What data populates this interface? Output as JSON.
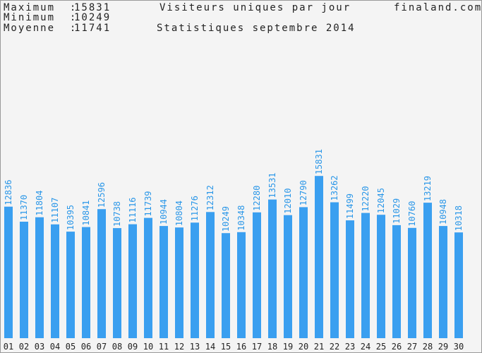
{
  "header": {
    "max_label": "Maximum  :",
    "max_value": "15831",
    "min_label": "Minimum  :",
    "min_value": "10249",
    "avg_label": "Moyenne  :",
    "avg_value": "11741",
    "title": "Visiteurs uniques par jour",
    "subtitle": "Statistiques septembre 2014",
    "site": "finaland.com"
  },
  "colors": {
    "bar": "#3a9ff0",
    "value_label": "#2b97e8",
    "background": "#f4f4f4"
  },
  "chart_data": {
    "type": "bar",
    "title": "Visiteurs uniques par jour",
    "subtitle": "Statistiques septembre 2014",
    "categories": [
      "01",
      "02",
      "03",
      "04",
      "05",
      "06",
      "07",
      "08",
      "09",
      "10",
      "11",
      "12",
      "13",
      "14",
      "15",
      "16",
      "17",
      "18",
      "19",
      "20",
      "21",
      "22",
      "23",
      "24",
      "25",
      "26",
      "27",
      "28",
      "29",
      "30"
    ],
    "values": [
      12836,
      11370,
      11804,
      11107,
      10395,
      10841,
      12596,
      10738,
      11116,
      11739,
      10944,
      10804,
      11276,
      12312,
      10249,
      10348,
      12280,
      13531,
      12010,
      12790,
      15831,
      13262,
      11499,
      12220,
      12045,
      11029,
      10760,
      13219,
      10948,
      10318
    ],
    "ylim": [
      0,
      33000
    ],
    "grid": false,
    "data_labels": true
  }
}
